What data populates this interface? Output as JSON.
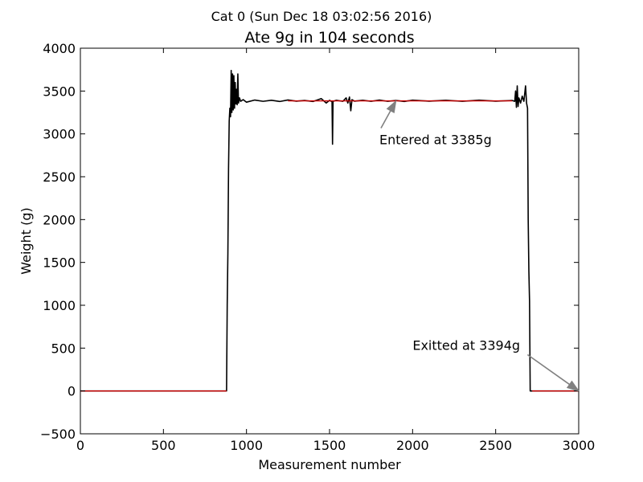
{
  "chart_data": {
    "type": "line",
    "suptitle": "Cat 0 (Sun Dec 18 03:02:56 2016)",
    "title": "Ate 9g in 104 seconds",
    "xlabel": "Measurement number",
    "ylabel": "Weight (g)",
    "xlim": [
      0,
      3000
    ],
    "ylim": [
      -500,
      4000
    ],
    "xticks": [
      0,
      500,
      1000,
      1500,
      2000,
      2500,
      3000
    ],
    "yticks": [
      -500,
      0,
      500,
      1000,
      1500,
      2000,
      2500,
      3000,
      3500,
      4000
    ],
    "ytick_labels": [
      "−500",
      "0",
      "500",
      "1000",
      "1500",
      "2000",
      "2500",
      "3000",
      "3500",
      "4000"
    ],
    "grid": false,
    "colors": {
      "weight": "#000000",
      "baseline": "#cc0000",
      "arrow": "#808080"
    },
    "series": [
      {
        "role": "weight",
        "color": "#000000",
        "points": [
          [
            0,
            0
          ],
          [
            880,
            0
          ],
          [
            884,
            1000
          ],
          [
            888,
            1600
          ],
          [
            892,
            2600
          ],
          [
            896,
            3150
          ],
          [
            900,
            3300
          ],
          [
            904,
            3200
          ],
          [
            908,
            3740
          ],
          [
            912,
            3250
          ],
          [
            916,
            3700
          ],
          [
            920,
            3280
          ],
          [
            924,
            3680
          ],
          [
            928,
            3300
          ],
          [
            932,
            3600
          ],
          [
            936,
            3350
          ],
          [
            940,
            3520
          ],
          [
            944,
            3340
          ],
          [
            948,
            3700
          ],
          [
            952,
            3360
          ],
          [
            958,
            3420
          ],
          [
            965,
            3380
          ],
          [
            980,
            3400
          ],
          [
            1000,
            3370
          ],
          [
            1050,
            3395
          ],
          [
            1100,
            3380
          ],
          [
            1150,
            3392
          ],
          [
            1200,
            3378
          ],
          [
            1250,
            3396
          ],
          [
            1300,
            3382
          ],
          [
            1350,
            3390
          ],
          [
            1400,
            3378
          ],
          [
            1450,
            3412
          ],
          [
            1480,
            3360
          ],
          [
            1500,
            3392
          ],
          [
            1510,
            3380
          ],
          [
            1515,
            3380
          ],
          [
            1518,
            2880
          ],
          [
            1521,
            3380
          ],
          [
            1540,
            3392
          ],
          [
            1580,
            3380
          ],
          [
            1600,
            3420
          ],
          [
            1610,
            3360
          ],
          [
            1620,
            3430
          ],
          [
            1628,
            3270
          ],
          [
            1635,
            3400
          ],
          [
            1650,
            3382
          ],
          [
            1700,
            3392
          ],
          [
            1750,
            3380
          ],
          [
            1800,
            3395
          ],
          [
            1850,
            3380
          ],
          [
            1900,
            3390
          ],
          [
            1950,
            3378
          ],
          [
            2000,
            3394
          ],
          [
            2100,
            3382
          ],
          [
            2200,
            3392
          ],
          [
            2300,
            3380
          ],
          [
            2400,
            3394
          ],
          [
            2500,
            3382
          ],
          [
            2600,
            3390
          ],
          [
            2615,
            3380
          ],
          [
            2620,
            3500
          ],
          [
            2625,
            3310
          ],
          [
            2630,
            3560
          ],
          [
            2635,
            3320
          ],
          [
            2640,
            3420
          ],
          [
            2650,
            3360
          ],
          [
            2660,
            3440
          ],
          [
            2670,
            3380
          ],
          [
            2680,
            3560
          ],
          [
            2686,
            3360
          ],
          [
            2692,
            3300
          ],
          [
            2696,
            2000
          ],
          [
            2700,
            1400
          ],
          [
            2704,
            1050
          ],
          [
            2708,
            0
          ],
          [
            3000,
            0
          ]
        ]
      },
      {
        "role": "baseline",
        "color": "#cc0000",
        "points": [
          [
            0,
            0
          ],
          [
            880,
            0
          ]
        ]
      },
      {
        "role": "baseline",
        "color": "#cc0000",
        "points": [
          [
            1250,
            3385
          ],
          [
            2600,
            3385
          ]
        ]
      },
      {
        "role": "baseline",
        "color": "#cc0000",
        "points": [
          [
            2720,
            0
          ],
          [
            3000,
            0
          ]
        ]
      }
    ],
    "annotations": [
      {
        "text": "Entered at 3385g",
        "text_x": 1800,
        "text_y": 2880,
        "arrow_to_x": 1900,
        "arrow_to_y": 3385
      },
      {
        "text": "Exitted at 3394g",
        "text_x": 2000,
        "text_y": 480,
        "arrow_to_x": 3000,
        "arrow_to_y": 0
      }
    ]
  }
}
